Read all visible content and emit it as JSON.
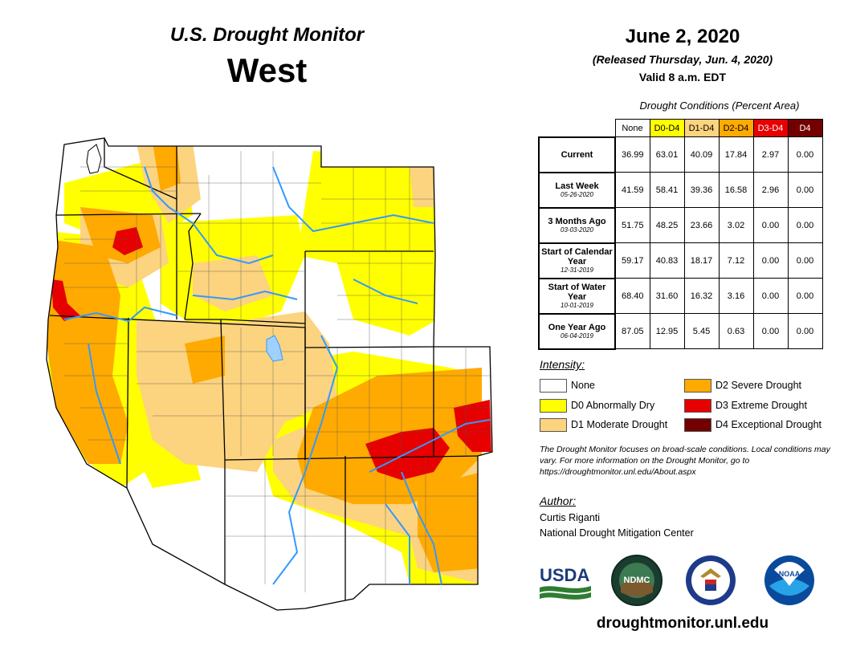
{
  "header": {
    "subtitle": "U.S. Drought Monitor",
    "region": "West"
  },
  "release": {
    "date": "June 2, 2020",
    "released": "(Released Thursday, Jun. 4, 2020)",
    "valid": "Valid 8 a.m. EDT"
  },
  "conditions_table": {
    "title": "Drought Conditions (Percent Area)",
    "columns": [
      "None",
      "D0-D4",
      "D1-D4",
      "D2-D4",
      "D3-D4",
      "D4"
    ],
    "rows": [
      {
        "label": "Current",
        "date": "",
        "values": [
          "36.99",
          "63.01",
          "40.09",
          "17.84",
          "2.97",
          "0.00"
        ]
      },
      {
        "label": "Last Week",
        "date": "05-26-2020",
        "values": [
          "41.59",
          "58.41",
          "39.36",
          "16.58",
          "2.96",
          "0.00"
        ]
      },
      {
        "label": "3 Months Ago",
        "date": "03-03-2020",
        "values": [
          "51.75",
          "48.25",
          "23.66",
          "3.02",
          "0.00",
          "0.00"
        ]
      },
      {
        "label": "Start of Calendar Year",
        "date": "12-31-2019",
        "values": [
          "59.17",
          "40.83",
          "18.17",
          "7.12",
          "0.00",
          "0.00"
        ]
      },
      {
        "label": "Start of Water Year",
        "date": "10-01-2019",
        "values": [
          "68.40",
          "31.60",
          "16.32",
          "3.16",
          "0.00",
          "0.00"
        ]
      },
      {
        "label": "One Year Ago",
        "date": "06-04-2019",
        "values": [
          "87.05",
          "12.95",
          "5.45",
          "0.63",
          "0.00",
          "0.00"
        ]
      }
    ]
  },
  "legend": {
    "title": "Intensity:",
    "items": [
      {
        "label": "None",
        "color": "#ffffff"
      },
      {
        "label": "D0 Abnormally Dry",
        "color": "#ffff00"
      },
      {
        "label": "D1 Moderate Drought",
        "color": "#fcd37f"
      },
      {
        "label": "D2 Severe Drought",
        "color": "#ffaa00"
      },
      {
        "label": "D3 Extreme Drought",
        "color": "#e60000"
      },
      {
        "label": "D4 Exceptional Drought",
        "color": "#730000"
      }
    ]
  },
  "note": "The Drought Monitor focuses on broad-scale conditions. Local conditions may vary. For more information on the Drought Monitor, go to https://droughtmonitor.unl.edu/About.aspx",
  "author": {
    "title": "Author:",
    "name": "Curtis Riganti",
    "org": "National Drought Mitigation Center"
  },
  "logos": {
    "usda": "USDA",
    "ndmc": "NDMC",
    "noaa": "NOAA"
  },
  "footer_url": "droughtmonitor.unl.edu",
  "colors": {
    "none": "#ffffff",
    "d0": "#ffff00",
    "d1": "#fcd37f",
    "d2": "#ffaa00",
    "d3": "#e60000",
    "d4": "#730000",
    "rivers": "#3399ff"
  }
}
